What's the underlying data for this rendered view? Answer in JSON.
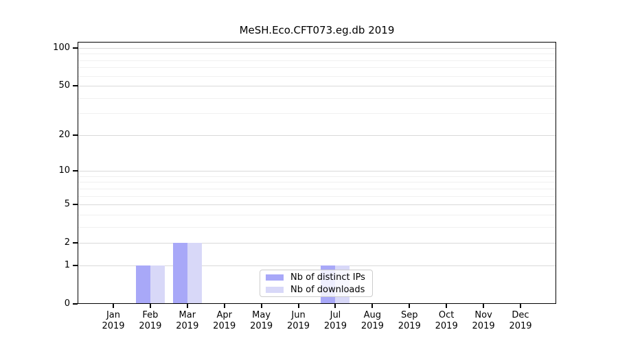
{
  "chart_data": {
    "type": "bar",
    "title": "MeSH.Eco.CFT073.eg.db 2019",
    "categories": [
      "Jan",
      "Feb",
      "Mar",
      "Apr",
      "May",
      "Jun",
      "Jul",
      "Aug",
      "Sep",
      "Oct",
      "Nov",
      "Dec"
    ],
    "x_sublabel": "2019",
    "series": [
      {
        "name": "Nb of distinct IPs",
        "color": "#a8a8f8",
        "values": [
          0,
          1,
          2,
          0,
          0,
          0,
          1,
          0,
          0,
          0,
          0,
          0
        ]
      },
      {
        "name": "Nb of downloads",
        "color": "#d8d8f8",
        "values": [
          0,
          1,
          2,
          0,
          0,
          0,
          1,
          0,
          0,
          0,
          0,
          0
        ]
      }
    ],
    "y_scale": "log1p",
    "ylim": [
      0,
      112
    ],
    "y_major_ticks": [
      0,
      1,
      2,
      5,
      10,
      20,
      50,
      100
    ],
    "y_minor_ticks": [
      3,
      4,
      6,
      7,
      8,
      9,
      30,
      40,
      60,
      70,
      80,
      90
    ],
    "grid": true,
    "legend_position": "inside-lower-center"
  },
  "colors": {
    "major_grid": "#d9d9d9",
    "minor_grid": "#f0f0f0",
    "axis": "#000000",
    "background": "#ffffff"
  }
}
